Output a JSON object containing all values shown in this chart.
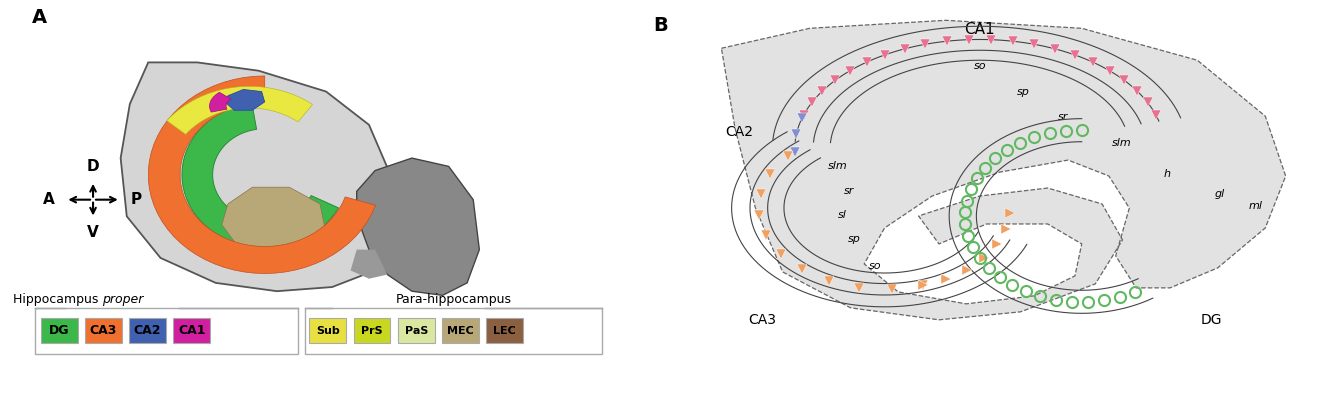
{
  "panel_A_label": "A",
  "panel_B_label": "B",
  "legend_items": [
    {
      "label": "DG",
      "color": "#3cb84a"
    },
    {
      "label": "CA3",
      "color": "#f07030"
    },
    {
      "label": "CA2",
      "color": "#4060b0"
    },
    {
      "label": "CA1",
      "color": "#d020a0"
    }
  ],
  "legend_items2": [
    {
      "label": "Sub",
      "color": "#e8e040"
    },
    {
      "label": "PrS",
      "color": "#c8d820"
    },
    {
      "label": "PaS",
      "color": "#d8e8a0"
    },
    {
      "label": "MEC",
      "color": "#b8a878"
    },
    {
      "label": "LEC",
      "color": "#8b6040"
    }
  ],
  "CA1_pink_color": "#e87090",
  "CA2_blue_color": "#8090d0",
  "CA3_orange_color": "#f0a060",
  "DG_green_color": "#60b860",
  "brain_facecolor": "#d5d5d5",
  "cereb_facecolor": "#888888",
  "section_facecolor": "#e2e2e2",
  "layer_line_color": "#444444"
}
